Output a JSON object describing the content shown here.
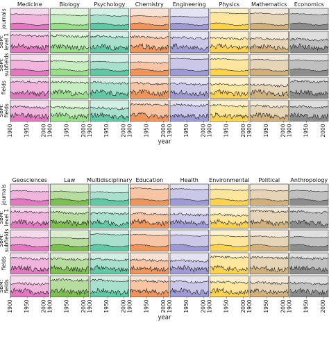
{
  "chart_data": {
    "type": "area",
    "xlabel": "year",
    "x_ticks": [
      "1900",
      "1950",
      "2000"
    ],
    "x_range": [
      1900,
      2015
    ],
    "row_labels": [
      "journals",
      "SBM:\nlevel 1",
      "SBM:\nsubfields",
      "fields",
      "SBM:\nfields"
    ],
    "panels": [
      {
        "columns": [
          {
            "name": "Medicine",
            "color": "#e377c2"
          },
          {
            "name": "Biology",
            "color": "#98df8a"
          },
          {
            "name": "Psychology",
            "color": "#5fc9a6"
          },
          {
            "name": "Chemistry",
            "color": "#f0955a"
          },
          {
            "name": "Engineering",
            "color": "#9e9ad6"
          },
          {
            "name": "Physics",
            "color": "#ffd24d"
          },
          {
            "name": "Mathematics",
            "color": "#d2b07a"
          },
          {
            "name": "Economics",
            "color": "#8c8c8c"
          }
        ]
      },
      {
        "columns": [
          {
            "name": "Geosciences",
            "color": "#e377c2"
          },
          {
            "name": "Law",
            "color": "#7bbf4f"
          },
          {
            "name": "Multidisciplinary",
            "color": "#5fc9a6"
          },
          {
            "name": "Education",
            "color": "#f0955a"
          },
          {
            "name": "Health",
            "color": "#9e9ad6"
          },
          {
            "name": "Environmental",
            "color": "#ffd24d"
          },
          {
            "name": "Political",
            "color": "#d2b07a"
          },
          {
            "name": "Anthropology",
            "color": "#8c8c8c"
          }
        ]
      }
    ]
  }
}
